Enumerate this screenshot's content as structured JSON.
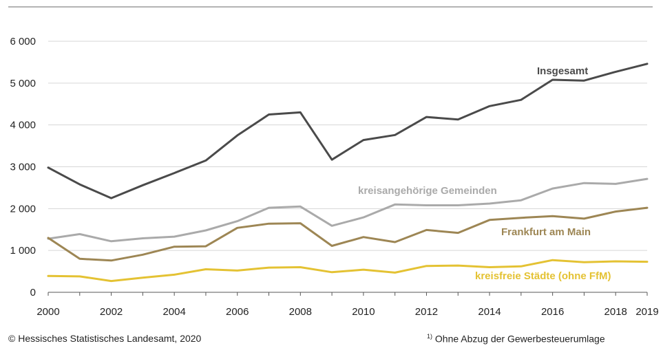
{
  "chart_data": {
    "type": "line",
    "x": [
      2000,
      2001,
      2002,
      2003,
      2004,
      2005,
      2006,
      2007,
      2008,
      2009,
      2010,
      2011,
      2012,
      2013,
      2014,
      2015,
      2016,
      2017,
      2018,
      2019
    ],
    "xticks": [
      2000,
      2002,
      2004,
      2006,
      2008,
      2010,
      2012,
      2014,
      2016,
      2018,
      2019
    ],
    "xtick_labels": [
      "2000",
      "2002",
      "2004",
      "2006",
      "2008",
      "2010",
      "2012",
      "2014",
      "2016",
      "2018",
      "2019"
    ],
    "yticks": [
      0,
      1000,
      2000,
      3000,
      4000,
      5000,
      6000
    ],
    "ytick_labels": [
      "0",
      "1 000",
      "2 000",
      "3 000",
      "4 000",
      "5 000",
      "6 000"
    ],
    "ylim": [
      0,
      6000
    ],
    "grid": true,
    "series": [
      {
        "name": "Insgesamt",
        "color": "#4a4a4a",
        "values": [
          2980,
          2580,
          2250,
          2560,
          2850,
          3150,
          3750,
          4250,
          4300,
          3170,
          3640,
          3760,
          4190,
          4130,
          4450,
          4600,
          5080,
          5060,
          5270,
          5460
        ]
      },
      {
        "name": "kreisangehörige Gemeinden",
        "color": "#aaaaaa",
        "values": [
          1280,
          1390,
          1220,
          1290,
          1330,
          1480,
          1700,
          2020,
          2050,
          1590,
          1790,
          2100,
          2080,
          2080,
          2120,
          2200,
          2480,
          2610,
          2590,
          2710
        ]
      },
      {
        "name": "Frankfurt am Main",
        "color": "#9d8654",
        "values": [
          1300,
          800,
          760,
          900,
          1090,
          1100,
          1540,
          1640,
          1650,
          1110,
          1320,
          1200,
          1490,
          1420,
          1730,
          1780,
          1820,
          1760,
          1930,
          2020
        ]
      },
      {
        "name": "kreisfreie Städte (ohne FfM)",
        "color": "#e4c233",
        "values": [
          390,
          380,
          270,
          350,
          420,
          550,
          520,
          590,
          600,
          480,
          540,
          470,
          630,
          640,
          600,
          620,
          770,
          720,
          740,
          730
        ]
      }
    ]
  },
  "footer": {
    "source": "© Hessisches Statistisches Landesamt, 2020",
    "footnote_mark": "1)",
    "footnote": " Ohne Abzug der Gewerbesteuerumlage"
  }
}
